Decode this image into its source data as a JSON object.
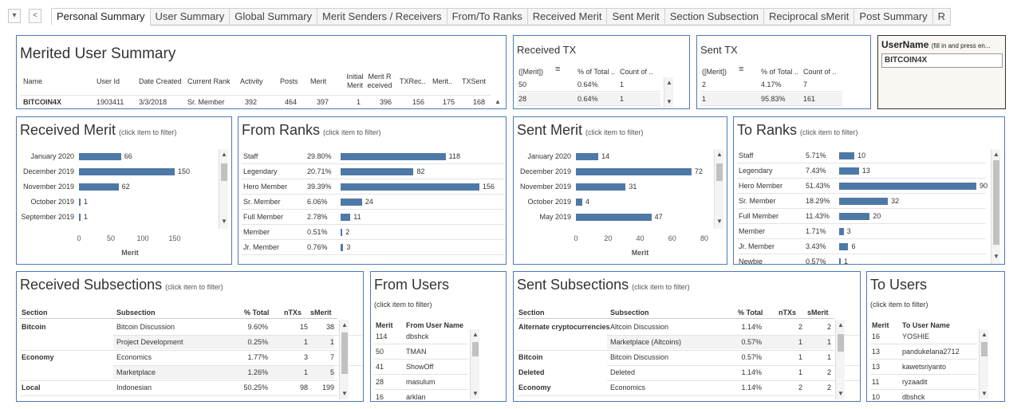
{
  "tabs": [
    "Personal Summary",
    "User Summary",
    "Global Summary",
    "Merit Senders / Receivers",
    "From/To Ranks",
    "Received Merit",
    "Sent Merit",
    "Section Subsection",
    "Reciprocal sMerit",
    "Post Summary",
    "R"
  ],
  "controls": {
    "dropdown": "▾",
    "back": "<"
  },
  "summary": {
    "title": "Merited User Summary",
    "headers": [
      "Name",
      "User Id",
      "Date Created",
      "Current Rank",
      "Activity",
      "Posts",
      "Merit",
      "Initial Merit",
      "Merit R eceived",
      "TXRec..",
      "Merit..",
      "TXSent"
    ],
    "row": [
      "BITCOIN4X",
      "1903411",
      "3/3/2018",
      "Sr. Member",
      "392",
      "464",
      "397",
      "1",
      "396",
      "156",
      "175",
      "168"
    ]
  },
  "received_tx": {
    "title": "Received TX",
    "headers": [
      "([Merit])",
      "% of Total ..",
      "Count of .."
    ],
    "rows": [
      [
        "50",
        "0.64%",
        "1"
      ],
      [
        "28",
        "0.64%",
        "1"
      ]
    ]
  },
  "sent_tx": {
    "title": "Sent TX",
    "headers": [
      "([Merit])",
      "% of Total ..",
      "Count of .."
    ],
    "rows": [
      [
        "2",
        "4.17%",
        "7"
      ],
      [
        "1",
        "95.83%",
        "161"
      ]
    ]
  },
  "username": {
    "label": "UserName",
    "hint": "(fill in and press en...",
    "value": "BITCOIN4X"
  },
  "filter_hint": "(click item to filter)",
  "received_merit": {
    "title": "Received Merit",
    "xlabel": "Merit",
    "ticks": [
      "0",
      "50",
      "100",
      "150"
    ]
  },
  "from_ranks": {
    "title": "From Ranks"
  },
  "sent_merit": {
    "title": "Sent Merit",
    "xlabel": "Merit",
    "ticks": [
      "0",
      "20",
      "40",
      "60",
      "80"
    ]
  },
  "to_ranks": {
    "title": "To Ranks"
  },
  "received_subsections": {
    "title": "Received Subsections",
    "headers": [
      "Section",
      "Subsection",
      "% Total",
      "nTXs",
      "sMerit"
    ],
    "rows": [
      [
        "Bitcoin",
        "Bitcoin Discussion",
        "9.60%",
        "15",
        "38"
      ],
      [
        "",
        "Project Development",
        "0.25%",
        "1",
        "1"
      ],
      [
        "Economy",
        "Economics",
        "1.77%",
        "3",
        "7"
      ],
      [
        "",
        "Marketplace",
        "1.26%",
        "1",
        "5"
      ],
      [
        "Local",
        "Indonesian",
        "50.25%",
        "98",
        "199"
      ]
    ]
  },
  "from_users": {
    "title": "From Users",
    "headers": [
      "Merit",
      "From User Name"
    ],
    "rows": [
      [
        "114",
        "dbshck"
      ],
      [
        "50",
        "TMAN"
      ],
      [
        "41",
        "ShowOff"
      ],
      [
        "28",
        "masulum"
      ],
      [
        "16",
        "arklan"
      ]
    ]
  },
  "sent_subsections": {
    "title": "Sent Subsections",
    "headers": [
      "Section",
      "Subsection",
      "% Total",
      "nTXs",
      "sMerit"
    ],
    "rows": [
      [
        "Alternate cryptocurrencies",
        "Altcoin Discussion",
        "1.14%",
        "2",
        "2"
      ],
      [
        "",
        "Marketplace (Altcoins)",
        "0.57%",
        "1",
        "1"
      ],
      [
        "Bitcoin",
        "Bitcoin Discussion",
        "0.57%",
        "1",
        "1"
      ],
      [
        "Deleted",
        "Deleted",
        "1.14%",
        "1",
        "2"
      ],
      [
        "Economy",
        "Economics",
        "1.14%",
        "2",
        "2"
      ]
    ]
  },
  "to_users": {
    "title": "To Users",
    "headers": [
      "Merit",
      "To User Name"
    ],
    "rows": [
      [
        "16",
        "YOSHIE"
      ],
      [
        "13",
        "pandukelana2712"
      ],
      [
        "13",
        "kawetsriyanto"
      ],
      [
        "11",
        "ryzaadit"
      ],
      [
        "10",
        "dbshck"
      ]
    ]
  },
  "chart_data": [
    {
      "type": "bar",
      "title": "Received Merit",
      "xlabel": "Merit",
      "xlim": [
        0,
        160
      ],
      "categories": [
        "January 2020",
        "December 2019",
        "November 2019",
        "October 2019",
        "September 2019"
      ],
      "values": [
        66,
        150,
        62,
        1,
        1
      ]
    },
    {
      "type": "bar",
      "title": "From Ranks",
      "categories": [
        "Staff",
        "Legendary",
        "Hero Member",
        "Sr. Member",
        "Full Member",
        "Member",
        "Jr. Member"
      ],
      "percent": [
        "29.80%",
        "20.71%",
        "39.39%",
        "6.06%",
        "2.78%",
        "0.51%",
        "0.76%"
      ],
      "values": [
        118,
        82,
        156,
        24,
        11,
        2,
        3
      ]
    },
    {
      "type": "bar",
      "title": "Sent Merit",
      "xlabel": "Merit",
      "xlim": [
        0,
        80
      ],
      "categories": [
        "January 2020",
        "December 2019",
        "November 2019",
        "October 2019",
        "May 2019"
      ],
      "values": [
        14,
        72,
        31,
        4,
        47
      ]
    },
    {
      "type": "bar",
      "title": "To Ranks",
      "categories": [
        "Staff",
        "Legendary",
        "Hero Member",
        "Sr. Member",
        "Full Member",
        "Member",
        "Jr. Member",
        "Newbie"
      ],
      "percent": [
        "5.71%",
        "7.43%",
        "51.43%",
        "18.29%",
        "11.43%",
        "1.71%",
        "3.43%",
        "0.57%"
      ],
      "values": [
        10,
        13,
        90,
        32,
        20,
        3,
        6,
        1
      ]
    }
  ],
  "colors": {
    "bar": "#4e79a7",
    "border": "#4d7ab3"
  }
}
